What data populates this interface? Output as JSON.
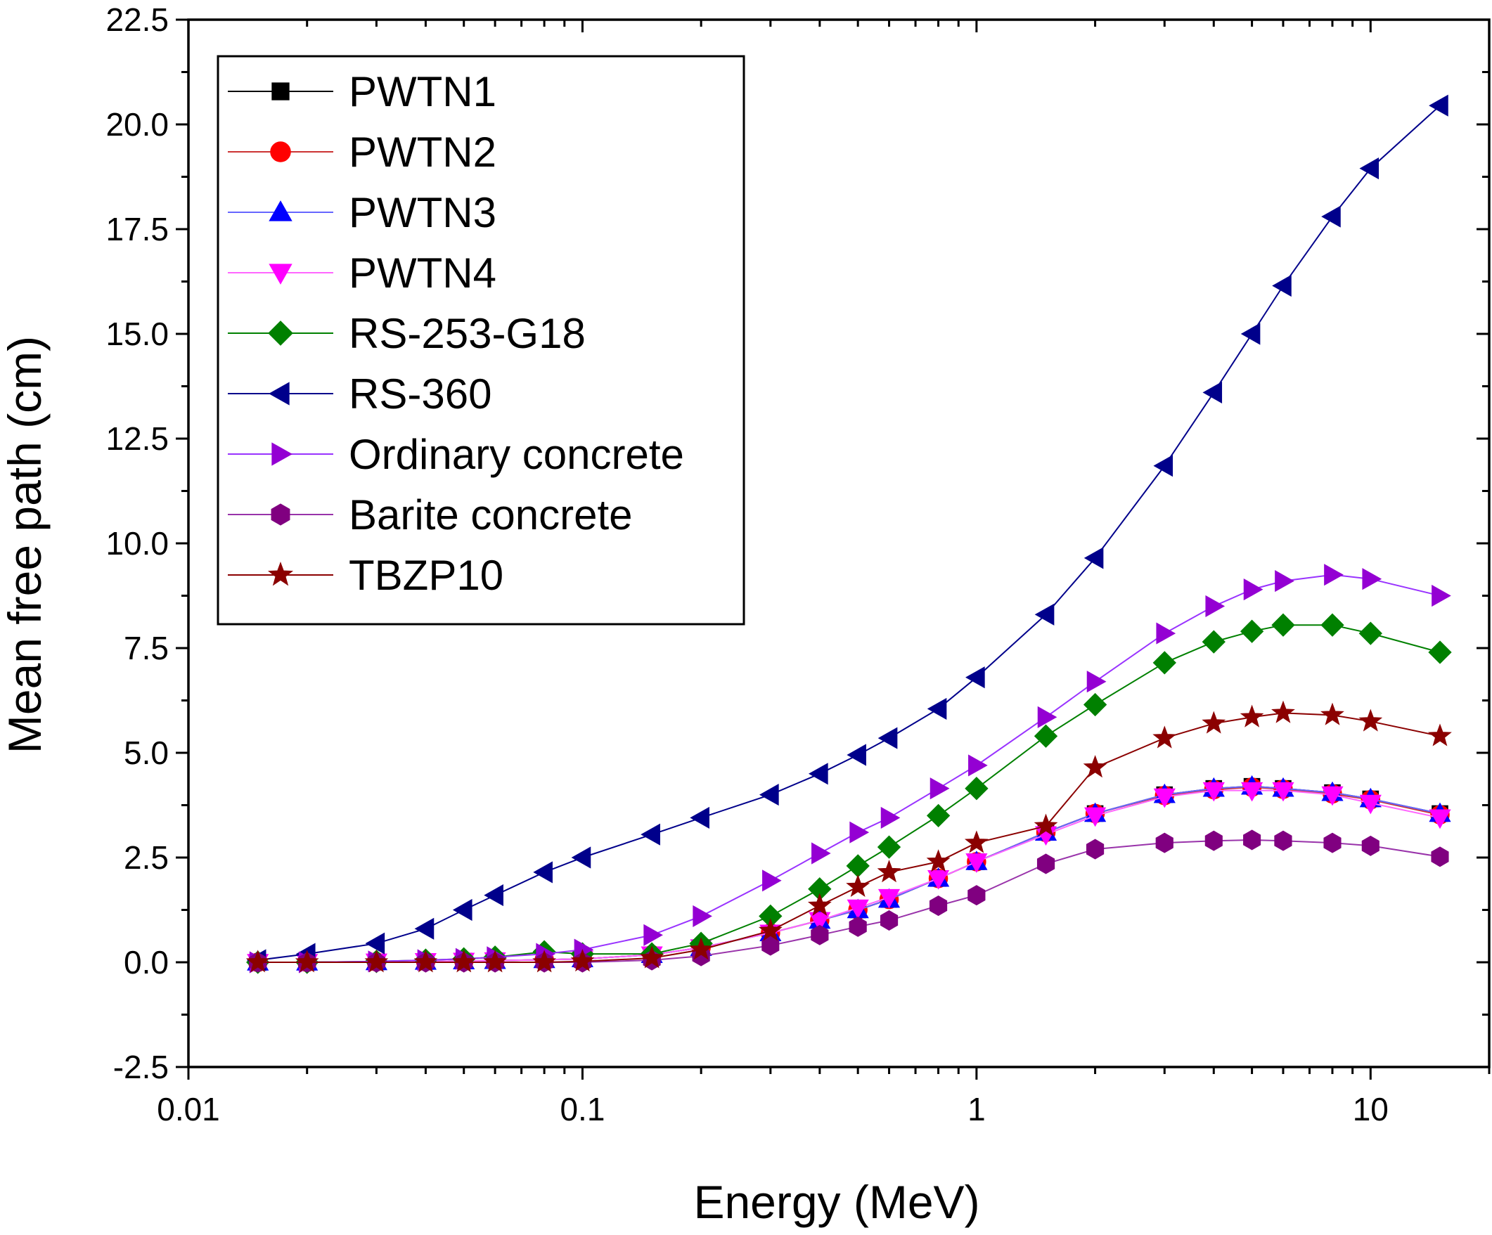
{
  "chart_data": {
    "type": "line",
    "xscale": "log",
    "xlabel": "Energy (MeV)",
    "ylabel": "Mean free path (cm)",
    "xlim": [
      0.01,
      20
    ],
    "ylim": [
      -2.5,
      22.5
    ],
    "xticks": [
      0.01,
      0.1,
      1,
      10
    ],
    "xtick_labels": [
      "0.01",
      "0.1",
      "1",
      "10"
    ],
    "yticks": [
      -2.5,
      0,
      2.5,
      5,
      7.5,
      10,
      12.5,
      15,
      17.5,
      20,
      22.5
    ],
    "ytick_labels": [
      "-2.5",
      "0.0",
      "2.5",
      "5.0",
      "7.5",
      "10.0",
      "12.5",
      "15.0",
      "17.5",
      "20.0",
      "22.5"
    ],
    "legend_position": "top-left",
    "grid": false,
    "x": [
      0.015,
      0.02,
      0.03,
      0.04,
      0.05,
      0.06,
      0.08,
      0.1,
      0.15,
      0.2,
      0.3,
      0.4,
      0.5,
      0.6,
      0.8,
      1,
      1.5,
      2,
      3,
      4,
      5,
      6,
      8,
      10,
      15
    ],
    "series": [
      {
        "name": "PWTN1",
        "color": "#000000",
        "line_color": "#000000",
        "marker": "square",
        "values": [
          0.0,
          0.0,
          0.01,
          0.02,
          0.03,
          0.04,
          0.06,
          0.08,
          0.18,
          0.35,
          0.7,
          1.0,
          1.25,
          1.5,
          2.0,
          2.4,
          3.1,
          3.55,
          4.0,
          4.15,
          4.2,
          4.15,
          4.05,
          3.9,
          3.55
        ]
      },
      {
        "name": "PWTN2",
        "color": "#ff0000",
        "line_color": "#cc3333",
        "marker": "circle",
        "values": [
          0.0,
          0.0,
          0.01,
          0.02,
          0.03,
          0.04,
          0.06,
          0.08,
          0.18,
          0.35,
          0.7,
          1.0,
          1.25,
          1.5,
          2.0,
          2.4,
          3.1,
          3.55,
          3.98,
          4.12,
          4.18,
          4.13,
          4.02,
          3.88,
          3.52
        ]
      },
      {
        "name": "PWTN3",
        "color": "#0000ff",
        "line_color": "#6666ff",
        "marker": "triangle-up",
        "values": [
          0.0,
          0.0,
          0.01,
          0.02,
          0.03,
          0.04,
          0.06,
          0.08,
          0.18,
          0.35,
          0.7,
          1.0,
          1.25,
          1.5,
          2.0,
          2.4,
          3.1,
          3.55,
          4.0,
          4.15,
          4.2,
          4.15,
          4.05,
          3.9,
          3.55
        ]
      },
      {
        "name": "PWTN4",
        "color": "#ff00ff",
        "line_color": "#ff66ff",
        "marker": "triangle-down",
        "values": [
          0.0,
          0.0,
          0.01,
          0.02,
          0.03,
          0.04,
          0.06,
          0.08,
          0.18,
          0.35,
          0.7,
          1.0,
          1.3,
          1.55,
          2.0,
          2.4,
          3.05,
          3.5,
          3.95,
          4.1,
          4.1,
          4.1,
          4.0,
          3.8,
          3.45
        ]
      },
      {
        "name": "RS-253-G18",
        "color": "#008000",
        "line_color": "#008000",
        "marker": "diamond",
        "values": [
          0.0,
          0.0,
          0.02,
          0.05,
          0.08,
          0.12,
          0.25,
          0.2,
          0.2,
          0.45,
          1.1,
          1.75,
          2.3,
          2.75,
          3.5,
          4.15,
          5.4,
          6.15,
          7.15,
          7.65,
          7.9,
          8.05,
          8.05,
          7.85,
          7.4
        ]
      },
      {
        "name": "RS-360",
        "color": "#00008b",
        "line_color": "#00008b",
        "marker": "triangle-left",
        "values": [
          0.05,
          0.2,
          0.45,
          0.8,
          1.25,
          1.6,
          2.15,
          2.5,
          3.05,
          3.45,
          4.0,
          4.5,
          4.95,
          5.35,
          6.05,
          6.8,
          8.3,
          9.65,
          11.85,
          13.6,
          15.0,
          16.15,
          17.8,
          18.95,
          20.45
        ]
      },
      {
        "name": "Ordinary concrete",
        "color": "#9400d3",
        "line_color": "#9933ff",
        "marker": "triangle-right",
        "values": [
          0.0,
          0.0,
          0.02,
          0.05,
          0.08,
          0.12,
          0.2,
          0.3,
          0.65,
          1.1,
          1.95,
          2.6,
          3.1,
          3.45,
          4.15,
          4.7,
          5.85,
          6.7,
          7.85,
          8.5,
          8.9,
          9.1,
          9.25,
          9.15,
          8.75
        ]
      },
      {
        "name": "Barite concrete",
        "color": "#800080",
        "line_color": "#9933aa",
        "marker": "hexagon",
        "values": [
          0.0,
          0.0,
          0.0,
          0.0,
          0.0,
          0.0,
          0.0,
          0.0,
          0.05,
          0.15,
          0.4,
          0.65,
          0.85,
          1.0,
          1.35,
          1.6,
          2.35,
          2.7,
          2.85,
          2.9,
          2.92,
          2.9,
          2.85,
          2.78,
          2.52
        ]
      },
      {
        "name": "TBZP10",
        "color": "#8b0000",
        "line_color": "#8b0000",
        "marker": "star",
        "values": [
          0.0,
          0.0,
          0.0,
          0.0,
          0.0,
          0.0,
          0.0,
          0.02,
          0.1,
          0.3,
          0.75,
          1.35,
          1.8,
          2.15,
          2.4,
          2.85,
          3.25,
          4.65,
          5.35,
          5.7,
          5.85,
          5.95,
          5.9,
          5.75,
          5.4
        ]
      }
    ]
  }
}
